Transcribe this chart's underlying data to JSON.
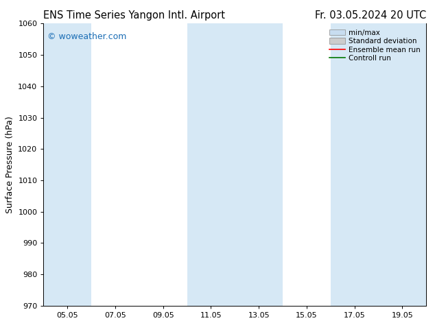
{
  "title_left": "ENS Time Series Yangon Intl. Airport",
  "title_right": "Fr. 03.05.2024 20 UTC",
  "ylabel": "Surface Pressure (hPa)",
  "ylim": [
    970,
    1060
  ],
  "yticks": [
    970,
    980,
    990,
    1000,
    1010,
    1020,
    1030,
    1040,
    1050,
    1060
  ],
  "x_tick_labels": [
    "05.05",
    "07.05",
    "09.05",
    "11.05",
    "13.05",
    "15.05",
    "17.05",
    "19.05"
  ],
  "x_tick_positions": [
    1,
    3,
    5,
    7,
    9,
    11,
    13,
    15
  ],
  "xlim": [
    0,
    16
  ],
  "shaded_bands": [
    {
      "xmin": 0.0,
      "xmax": 2.0
    },
    {
      "xmin": 6.0,
      "xmax": 8.0
    },
    {
      "xmin": 8.0,
      "xmax": 10.0
    },
    {
      "xmin": 12.0,
      "xmax": 14.0
    },
    {
      "xmin": 14.0,
      "xmax": 16.0
    }
  ],
  "band_color": "#d6e8f5",
  "bg_color": "#ffffff",
  "plot_bg_color": "#ffffff",
  "watermark_text": "© woweather.com",
  "watermark_color": "#1a6db5",
  "legend_items": [
    {
      "label": "min/max",
      "color": "#c8ddf0",
      "edgecolor": "#888888",
      "type": "bar"
    },
    {
      "label": "Standard deviation",
      "color": "#cccccc",
      "edgecolor": "#888888",
      "type": "bar"
    },
    {
      "label": "Ensemble mean run",
      "color": "#ff0000",
      "type": "line"
    },
    {
      "label": "Controll run",
      "color": "#007700",
      "type": "line"
    }
  ],
  "title_fontsize": 10.5,
  "ylabel_fontsize": 9,
  "tick_fontsize": 8,
  "watermark_fontsize": 9,
  "legend_fontsize": 7.5
}
